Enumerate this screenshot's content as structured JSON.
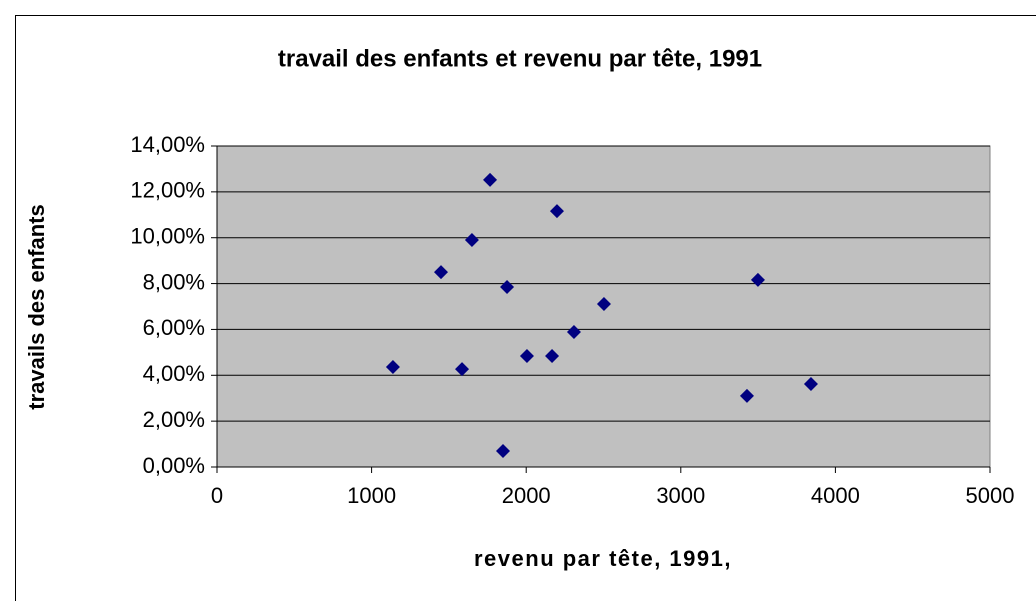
{
  "chart_data": {
    "type": "scatter",
    "title": "travail des enfants et revenu par tête, 1991",
    "x_label": "revenu par tête, 1991,",
    "y_label": "travails des enfants",
    "color": "#000080",
    "x": [
      1138,
      1449,
      1585,
      1649,
      1766,
      1876,
      1850,
      2005,
      2167,
      2199,
      2309,
      2503,
      3428,
      3499,
      3842
    ],
    "values": [
      4.36,
      8.5,
      4.27,
      9.9,
      12.52,
      7.85,
      0.7,
      4.84,
      4.84,
      11.16,
      5.89,
      7.11,
      3.1,
      8.16,
      3.62
    ],
    "xlim": [
      0,
      5000
    ],
    "xticks": [
      0,
      1000,
      2000,
      3000,
      4000,
      5000
    ],
    "ylim": [
      0,
      14
    ],
    "yticks": [
      {
        "value": 0,
        "label": "0,00%"
      },
      {
        "value": 2,
        "label": "2,00%"
      },
      {
        "value": 4,
        "label": "4,00%"
      },
      {
        "value": 6,
        "label": "6,00%"
      },
      {
        "value": 8,
        "label": "8,00%"
      },
      {
        "value": 10,
        "label": "10,00%"
      },
      {
        "value": 12,
        "label": "12,00%"
      },
      {
        "value": 14,
        "label": "14,00%"
      }
    ],
    "grid": true
  }
}
